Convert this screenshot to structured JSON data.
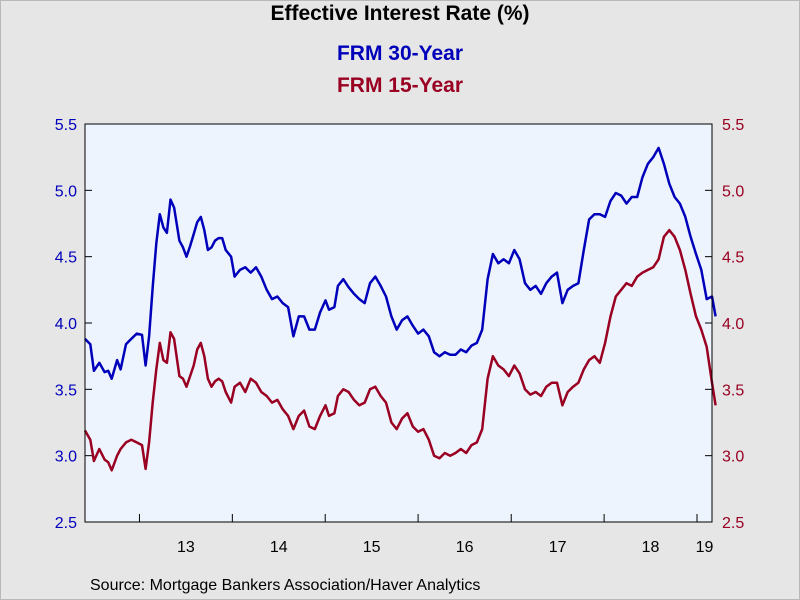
{
  "chart_data": {
    "type": "line",
    "title": "Effective Interest Rate (%)",
    "source": "Source:  Mortgage Bankers Association/Haver Analytics",
    "x_range": [
      "2012-06",
      "2019-03"
    ],
    "x_tick_labels": [
      "13",
      "14",
      "15",
      "16",
      "17",
      "18",
      "19"
    ],
    "y_left": {
      "ticks": [
        "2.5",
        "3.0",
        "3.5",
        "4.0",
        "4.5",
        "5.0",
        "5.5"
      ],
      "range": [
        2.5,
        5.5
      ],
      "color": "#0000bb"
    },
    "y_right": {
      "ticks": [
        "2.5",
        "3.0",
        "3.5",
        "4.0",
        "4.5",
        "5.0",
        "5.5"
      ],
      "range": [
        2.5,
        5.5
      ],
      "color": "#990022"
    },
    "plot_background": "#eef4fd",
    "grid": false,
    "legend_placement": "top-center",
    "series": [
      {
        "name": "FRM 30-Year",
        "color": "#0000bb",
        "axis": "left",
        "points": [
          [
            "2012-06-01",
            3.88
          ],
          [
            "2012-06-22",
            3.84
          ],
          [
            "2012-07-06",
            3.64
          ],
          [
            "2012-07-27",
            3.7
          ],
          [
            "2012-08-17",
            3.63
          ],
          [
            "2012-08-31",
            3.64
          ],
          [
            "2012-09-14",
            3.58
          ],
          [
            "2012-10-05",
            3.72
          ],
          [
            "2012-10-19",
            3.65
          ],
          [
            "2012-11-09",
            3.84
          ],
          [
            "2012-11-30",
            3.88
          ],
          [
            "2012-12-21",
            3.92
          ],
          [
            "2013-01-11",
            3.91
          ],
          [
            "2013-01-25",
            3.68
          ],
          [
            "2013-02-08",
            3.9
          ],
          [
            "2013-02-22",
            4.27
          ],
          [
            "2013-03-08",
            4.6
          ],
          [
            "2013-03-22",
            4.82
          ],
          [
            "2013-04-05",
            4.72
          ],
          [
            "2013-04-19",
            4.68
          ],
          [
            "2013-05-03",
            4.93
          ],
          [
            "2013-05-17",
            4.87
          ],
          [
            "2013-06-07",
            4.62
          ],
          [
            "2013-06-21",
            4.57
          ],
          [
            "2013-07-05",
            4.5
          ],
          [
            "2013-07-19",
            4.58
          ],
          [
            "2013-08-02",
            4.67
          ],
          [
            "2013-08-16",
            4.76
          ],
          [
            "2013-08-30",
            4.8
          ],
          [
            "2013-09-13",
            4.7
          ],
          [
            "2013-09-27",
            4.55
          ],
          [
            "2013-10-11",
            4.57
          ],
          [
            "2013-10-25",
            4.62
          ],
          [
            "2013-11-08",
            4.64
          ],
          [
            "2013-11-22",
            4.64
          ],
          [
            "2013-12-06",
            4.55
          ],
          [
            "2013-12-27",
            4.5
          ],
          [
            "2014-01-10",
            4.35
          ],
          [
            "2014-01-31",
            4.4
          ],
          [
            "2014-02-21",
            4.42
          ],
          [
            "2014-03-14",
            4.38
          ],
          [
            "2014-04-04",
            4.42
          ],
          [
            "2014-04-25",
            4.35
          ],
          [
            "2014-05-16",
            4.25
          ],
          [
            "2014-06-06",
            4.18
          ],
          [
            "2014-06-27",
            4.2
          ],
          [
            "2014-07-18",
            4.15
          ],
          [
            "2014-08-08",
            4.12
          ],
          [
            "2014-08-29",
            3.9
          ],
          [
            "2014-09-19",
            4.05
          ],
          [
            "2014-10-10",
            4.05
          ],
          [
            "2014-10-31",
            3.95
          ],
          [
            "2014-11-21",
            3.95
          ],
          [
            "2014-12-12",
            4.08
          ],
          [
            "2015-01-02",
            4.17
          ],
          [
            "2015-01-16",
            4.1
          ],
          [
            "2015-02-06",
            4.12
          ],
          [
            "2015-02-20",
            4.28
          ],
          [
            "2015-03-13",
            4.33
          ],
          [
            "2015-04-03",
            4.27
          ],
          [
            "2015-04-24",
            4.22
          ],
          [
            "2015-05-15",
            4.18
          ],
          [
            "2015-06-05",
            4.15
          ],
          [
            "2015-06-26",
            4.3
          ],
          [
            "2015-07-17",
            4.35
          ],
          [
            "2015-08-07",
            4.28
          ],
          [
            "2015-08-28",
            4.2
          ],
          [
            "2015-09-18",
            4.05
          ],
          [
            "2015-10-09",
            3.95
          ],
          [
            "2015-10-30",
            4.02
          ],
          [
            "2015-11-20",
            4.05
          ],
          [
            "2015-12-11",
            3.98
          ],
          [
            "2016-01-01",
            3.92
          ],
          [
            "2016-01-22",
            3.95
          ],
          [
            "2016-02-12",
            3.9
          ],
          [
            "2016-03-04",
            3.78
          ],
          [
            "2016-03-25",
            3.75
          ],
          [
            "2016-04-15",
            3.78
          ],
          [
            "2016-05-06",
            3.76
          ],
          [
            "2016-05-27",
            3.76
          ],
          [
            "2016-06-17",
            3.8
          ],
          [
            "2016-07-08",
            3.78
          ],
          [
            "2016-07-29",
            3.83
          ],
          [
            "2016-08-19",
            3.85
          ],
          [
            "2016-09-09",
            3.95
          ],
          [
            "2016-09-30",
            4.33
          ],
          [
            "2016-10-21",
            4.52
          ],
          [
            "2016-11-11",
            4.45
          ],
          [
            "2016-12-02",
            4.48
          ],
          [
            "2016-12-23",
            4.45
          ],
          [
            "2017-01-13",
            4.55
          ],
          [
            "2017-02-03",
            4.48
          ],
          [
            "2017-02-24",
            4.3
          ],
          [
            "2017-03-17",
            4.25
          ],
          [
            "2017-04-07",
            4.28
          ],
          [
            "2017-04-28",
            4.22
          ],
          [
            "2017-05-19",
            4.3
          ],
          [
            "2017-06-09",
            4.35
          ],
          [
            "2017-06-30",
            4.38
          ],
          [
            "2017-07-21",
            4.15
          ],
          [
            "2017-08-11",
            4.25
          ],
          [
            "2017-09-01",
            4.28
          ],
          [
            "2017-09-22",
            4.3
          ],
          [
            "2017-10-13",
            4.55
          ],
          [
            "2017-11-03",
            4.78
          ],
          [
            "2017-11-24",
            4.82
          ],
          [
            "2017-12-15",
            4.82
          ],
          [
            "2018-01-05",
            4.8
          ],
          [
            "2018-01-26",
            4.92
          ],
          [
            "2018-02-16",
            4.98
          ],
          [
            "2018-03-09",
            4.96
          ],
          [
            "2018-03-30",
            4.9
          ],
          [
            "2018-04-20",
            4.95
          ],
          [
            "2018-05-11",
            4.95
          ],
          [
            "2018-06-01",
            5.1
          ],
          [
            "2018-06-22",
            5.2
          ],
          [
            "2018-07-13",
            5.25
          ],
          [
            "2018-08-03",
            5.32
          ],
          [
            "2018-08-24",
            5.2
          ],
          [
            "2018-09-14",
            5.05
          ],
          [
            "2018-10-05",
            4.95
          ],
          [
            "2018-10-26",
            4.9
          ],
          [
            "2018-11-16",
            4.8
          ],
          [
            "2018-12-07",
            4.65
          ],
          [
            "2018-12-28",
            4.52
          ],
          [
            "2019-01-18",
            4.4
          ],
          [
            "2019-02-08",
            4.18
          ],
          [
            "2019-03-01",
            4.2
          ],
          [
            "2019-03-15",
            4.05
          ]
        ]
      },
      {
        "name": "FRM 15-Year",
        "color": "#990022",
        "axis": "right",
        "points": [
          [
            "2012-06-01",
            3.19
          ],
          [
            "2012-06-22",
            3.12
          ],
          [
            "2012-07-06",
            2.96
          ],
          [
            "2012-07-27",
            3.05
          ],
          [
            "2012-08-17",
            2.97
          ],
          [
            "2012-08-31",
            2.95
          ],
          [
            "2012-09-14",
            2.89
          ],
          [
            "2012-10-05",
            3.0
          ],
          [
            "2012-10-19",
            3.05
          ],
          [
            "2012-11-09",
            3.1
          ],
          [
            "2012-11-30",
            3.12
          ],
          [
            "2012-12-21",
            3.1
          ],
          [
            "2013-01-11",
            3.08
          ],
          [
            "2013-01-25",
            2.9
          ],
          [
            "2013-02-08",
            3.1
          ],
          [
            "2013-02-22",
            3.4
          ],
          [
            "2013-03-08",
            3.65
          ],
          [
            "2013-03-22",
            3.85
          ],
          [
            "2013-04-05",
            3.72
          ],
          [
            "2013-04-19",
            3.7
          ],
          [
            "2013-05-03",
            3.93
          ],
          [
            "2013-05-17",
            3.88
          ],
          [
            "2013-06-07",
            3.6
          ],
          [
            "2013-06-21",
            3.58
          ],
          [
            "2013-07-05",
            3.52
          ],
          [
            "2013-07-19",
            3.6
          ],
          [
            "2013-08-02",
            3.68
          ],
          [
            "2013-08-16",
            3.8
          ],
          [
            "2013-08-30",
            3.85
          ],
          [
            "2013-09-13",
            3.75
          ],
          [
            "2013-09-27",
            3.58
          ],
          [
            "2013-10-11",
            3.52
          ],
          [
            "2013-10-25",
            3.56
          ],
          [
            "2013-11-08",
            3.58
          ],
          [
            "2013-11-22",
            3.56
          ],
          [
            "2013-12-06",
            3.48
          ],
          [
            "2013-12-27",
            3.4
          ],
          [
            "2014-01-10",
            3.52
          ],
          [
            "2014-01-31",
            3.55
          ],
          [
            "2014-02-21",
            3.48
          ],
          [
            "2014-03-14",
            3.58
          ],
          [
            "2014-04-04",
            3.55
          ],
          [
            "2014-04-25",
            3.48
          ],
          [
            "2014-05-16",
            3.45
          ],
          [
            "2014-06-06",
            3.4
          ],
          [
            "2014-06-27",
            3.42
          ],
          [
            "2014-07-18",
            3.35
          ],
          [
            "2014-08-08",
            3.3
          ],
          [
            "2014-08-29",
            3.2
          ],
          [
            "2014-09-19",
            3.3
          ],
          [
            "2014-10-10",
            3.34
          ],
          [
            "2014-10-31",
            3.22
          ],
          [
            "2014-11-21",
            3.2
          ],
          [
            "2014-12-12",
            3.3
          ],
          [
            "2015-01-02",
            3.38
          ],
          [
            "2015-01-16",
            3.3
          ],
          [
            "2015-02-06",
            3.32
          ],
          [
            "2015-02-20",
            3.45
          ],
          [
            "2015-03-13",
            3.5
          ],
          [
            "2015-04-03",
            3.48
          ],
          [
            "2015-04-24",
            3.42
          ],
          [
            "2015-05-15",
            3.38
          ],
          [
            "2015-06-05",
            3.4
          ],
          [
            "2015-06-26",
            3.5
          ],
          [
            "2015-07-17",
            3.52
          ],
          [
            "2015-08-07",
            3.45
          ],
          [
            "2015-08-28",
            3.4
          ],
          [
            "2015-09-18",
            3.25
          ],
          [
            "2015-10-09",
            3.2
          ],
          [
            "2015-10-30",
            3.28
          ],
          [
            "2015-11-20",
            3.32
          ],
          [
            "2015-12-11",
            3.22
          ],
          [
            "2016-01-01",
            3.18
          ],
          [
            "2016-01-22",
            3.2
          ],
          [
            "2016-02-12",
            3.12
          ],
          [
            "2016-03-04",
            3.0
          ],
          [
            "2016-03-25",
            2.98
          ],
          [
            "2016-04-15",
            3.02
          ],
          [
            "2016-05-06",
            3.0
          ],
          [
            "2016-05-27",
            3.02
          ],
          [
            "2016-06-17",
            3.05
          ],
          [
            "2016-07-08",
            3.02
          ],
          [
            "2016-07-29",
            3.08
          ],
          [
            "2016-08-19",
            3.1
          ],
          [
            "2016-09-09",
            3.2
          ],
          [
            "2016-09-30",
            3.58
          ],
          [
            "2016-10-21",
            3.75
          ],
          [
            "2016-11-11",
            3.68
          ],
          [
            "2016-12-02",
            3.65
          ],
          [
            "2016-12-23",
            3.6
          ],
          [
            "2017-01-13",
            3.68
          ],
          [
            "2017-02-03",
            3.62
          ],
          [
            "2017-02-24",
            3.5
          ],
          [
            "2017-03-17",
            3.46
          ],
          [
            "2017-04-07",
            3.48
          ],
          [
            "2017-04-28",
            3.45
          ],
          [
            "2017-05-19",
            3.52
          ],
          [
            "2017-06-09",
            3.55
          ],
          [
            "2017-06-30",
            3.55
          ],
          [
            "2017-07-21",
            3.38
          ],
          [
            "2017-08-11",
            3.48
          ],
          [
            "2017-09-01",
            3.52
          ],
          [
            "2017-09-22",
            3.55
          ],
          [
            "2017-10-13",
            3.65
          ],
          [
            "2017-11-03",
            3.72
          ],
          [
            "2017-11-24",
            3.75
          ],
          [
            "2017-12-15",
            3.7
          ],
          [
            "2018-01-05",
            3.85
          ],
          [
            "2018-01-26",
            4.05
          ],
          [
            "2018-02-16",
            4.2
          ],
          [
            "2018-03-09",
            4.25
          ],
          [
            "2018-03-30",
            4.3
          ],
          [
            "2018-04-20",
            4.28
          ],
          [
            "2018-05-11",
            4.35
          ],
          [
            "2018-06-01",
            4.38
          ],
          [
            "2018-06-22",
            4.4
          ],
          [
            "2018-07-13",
            4.42
          ],
          [
            "2018-08-03",
            4.48
          ],
          [
            "2018-08-24",
            4.65
          ],
          [
            "2018-09-14",
            4.7
          ],
          [
            "2018-10-05",
            4.65
          ],
          [
            "2018-10-26",
            4.55
          ],
          [
            "2018-11-16",
            4.4
          ],
          [
            "2018-12-07",
            4.22
          ],
          [
            "2018-12-28",
            4.05
          ],
          [
            "2019-01-18",
            3.95
          ],
          [
            "2019-02-08",
            3.82
          ],
          [
            "2019-03-01",
            3.55
          ],
          [
            "2019-03-15",
            3.38
          ]
        ]
      }
    ]
  }
}
